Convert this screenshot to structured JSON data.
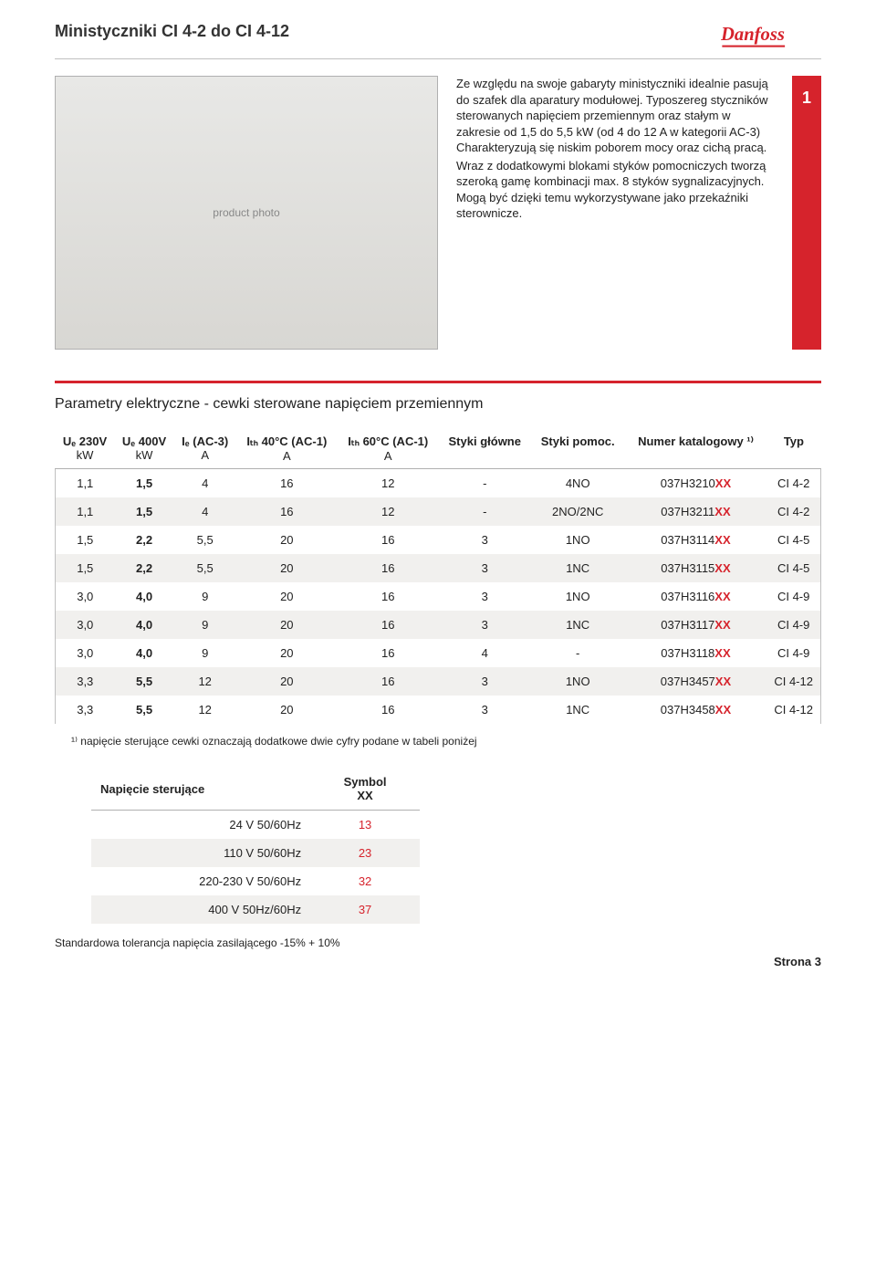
{
  "header": {
    "title": "Ministyczniki CI 4-2 do CI 4-12",
    "logo_text": "Danfoss"
  },
  "side_marker": "1",
  "photo_alt": "product photo",
  "description": {
    "p1": "Ze względu na swoje gabaryty ministyczniki idealnie pasują do szafek dla aparatury modułowej. Typoszereg styczników sterowanych napięciem przemiennym oraz stałym w zakresie od 1,5 do 5,5 kW (od 4 do 12 A w kategorii AC-3) Charakteryzują się niskim poborem mocy oraz cichą pracą.",
    "p2": "Wraz z dodatkowymi blokami styków pomocniczych tworzą szeroką gamę kombinacji max. 8 styków sygnalizacyjnych. Mogą być dzięki temu wykorzystywane jako przekaźniki sterownicze."
  },
  "section_title": "Parametry elektryczne - cewki sterowane napięciem przemiennym",
  "table": {
    "headers": {
      "c1": "Uₑ 230V",
      "c1sub": "kW",
      "c2": "Uₑ 400V",
      "c2sub": "kW",
      "c3": "Iₑ (AC-3)",
      "c3sub": "A",
      "c4": "Iₜₕ 40°C (AC-1)",
      "c4sub": "A",
      "c5": "Iₜₕ 60°C (AC-1)",
      "c5sub": "A",
      "c6": "Styki główne",
      "c7": "Styki pomoc.",
      "c8": "Numer katalogowy ¹⁾",
      "c9": "Typ"
    },
    "rows": [
      {
        "v": [
          "1,1",
          "1,5",
          "4",
          "16",
          "12",
          "-",
          "4NO",
          "037H3210",
          "CI 4-2"
        ],
        "alt": false
      },
      {
        "v": [
          "1,1",
          "1,5",
          "4",
          "16",
          "12",
          "-",
          "2NO/2NC",
          "037H3211",
          "CI 4-2"
        ],
        "alt": true
      },
      {
        "v": [
          "1,5",
          "2,2",
          "5,5",
          "20",
          "16",
          "3",
          "1NO",
          "037H3114",
          "CI 4-5"
        ],
        "alt": false
      },
      {
        "v": [
          "1,5",
          "2,2",
          "5,5",
          "20",
          "16",
          "3",
          "1NC",
          "037H3115",
          "CI 4-5"
        ],
        "alt": true
      },
      {
        "v": [
          "3,0",
          "4,0",
          "9",
          "20",
          "16",
          "3",
          "1NO",
          "037H3116",
          "CI 4-9"
        ],
        "alt": false
      },
      {
        "v": [
          "3,0",
          "4,0",
          "9",
          "20",
          "16",
          "3",
          "1NC",
          "037H3117",
          "CI 4-9"
        ],
        "alt": true
      },
      {
        "v": [
          "3,0",
          "4,0",
          "9",
          "20",
          "16",
          "4",
          "-",
          "037H3118",
          "CI 4-9"
        ],
        "alt": false
      },
      {
        "v": [
          "3,3",
          "5,5",
          "12",
          "20",
          "16",
          "3",
          "1NO",
          "037H3457",
          "CI 4-12"
        ],
        "alt": true
      },
      {
        "v": [
          "3,3",
          "5,5",
          "12",
          "20",
          "16",
          "3",
          "1NC",
          "037H3458",
          "CI 4-12"
        ],
        "alt": false
      }
    ],
    "xx_suffix": "XX",
    "footnote": "¹⁾ napięcie sterujące cewki oznaczają dodatkowe dwie cyfry podane w tabeli poniżej"
  },
  "voltage": {
    "h1": "Napięcie sterujące",
    "h2": "Symbol",
    "h2sub": "XX",
    "rows": [
      {
        "label": "24 V 50/60Hz",
        "code": "13",
        "alt": false
      },
      {
        "label": "110 V 50/60Hz",
        "code": "23",
        "alt": true
      },
      {
        "label": "220-230 V 50/60Hz",
        "code": "32",
        "alt": false
      },
      {
        "label": "400 V 50Hz/60Hz",
        "code": "37",
        "alt": true
      }
    ]
  },
  "tolerance": "Standardowa tolerancja napięcia zasilającego -15% + 10%",
  "footer": "Strona 3",
  "colors": {
    "accent": "#d6232c",
    "alt_row": "#f1f0ee",
    "border": "#b0b0b0"
  }
}
